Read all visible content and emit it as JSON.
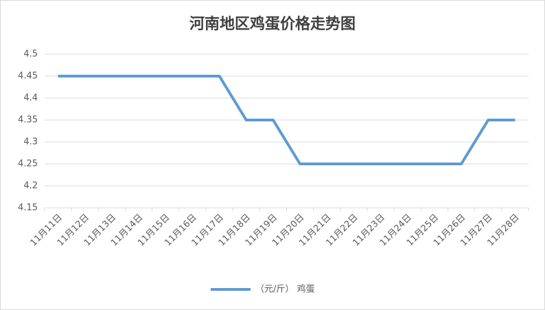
{
  "chart_data": {
    "type": "line",
    "title": "河南地区鸡蛋价格走势图",
    "categories": [
      "11月11日",
      "11月12日",
      "11月13日",
      "11月14日",
      "11月15日",
      "11月16日",
      "11月17日",
      "11月18日",
      "11月19日",
      "11月20日",
      "11月21日",
      "11月22日",
      "11月23日",
      "11月24日",
      "11月25日",
      "11月26日",
      "11月27日",
      "11月28日"
    ],
    "series": [
      {
        "name": "（元/斤） 鸡蛋",
        "color": "#5b9bd5",
        "values": [
          4.45,
          4.45,
          4.45,
          4.45,
          4.45,
          4.45,
          4.45,
          4.35,
          4.35,
          4.25,
          4.25,
          4.25,
          4.25,
          4.25,
          4.25,
          4.25,
          4.35,
          4.35
        ]
      }
    ],
    "ylim": [
      4.15,
      4.5
    ],
    "yticks": [
      4.15,
      4.2,
      4.25,
      4.3,
      4.35,
      4.4,
      4.45,
      4.5
    ],
    "grid": true,
    "legend": "bottom"
  }
}
